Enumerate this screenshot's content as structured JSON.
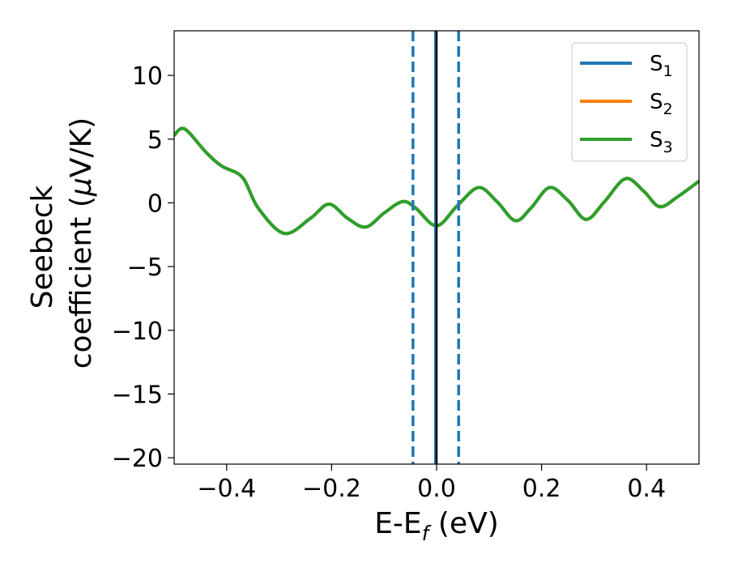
{
  "chart_data": {
    "type": "line",
    "xlabel": "E-E",
    "xlabel_sub": "f",
    "xlabel_unit": " (eV)",
    "ylabel_line1": "Seebeck",
    "ylabel_line2_pre": "coefficient  (",
    "ylabel_mu": "μ",
    "ylabel_line2_post": "V/K)",
    "xlim": [
      -0.5,
      0.5
    ],
    "ylim": [
      -20.5,
      13.5
    ],
    "xticks": [
      -0.4,
      -0.2,
      0.0,
      0.2,
      0.4
    ],
    "xtick_labels": [
      "−0.4",
      "−0.2",
      "0.0",
      "0.2",
      "0.4"
    ],
    "yticks": [
      10,
      5,
      0,
      -5,
      -10,
      -15,
      -20
    ],
    "ytick_labels": [
      "10",
      "5",
      "0",
      "−5",
      "−10",
      "−15",
      "−20"
    ],
    "grid": false,
    "legend_position": "top-right",
    "vlines": [
      {
        "x": -0.045,
        "style": "dashed",
        "color": "#1f77b4"
      },
      {
        "x": -0.002,
        "style": "solid",
        "color": "#1f77b4"
      },
      {
        "x": 0.0,
        "style": "solid",
        "color": "#000000"
      },
      {
        "x": 0.042,
        "style": "dashed",
        "color": "#1f77b4"
      }
    ],
    "series": [
      {
        "name": "S",
        "sub": "1",
        "color": "#1f77b4",
        "x": [
          -0.5,
          -0.48,
          -0.44,
          -0.41,
          -0.37,
          -0.34,
          -0.29,
          -0.24,
          -0.205,
          -0.17,
          -0.135,
          -0.1,
          -0.065,
          -0.04,
          0.0,
          0.04,
          0.08,
          0.115,
          0.15,
          0.18,
          0.215,
          0.25,
          0.285,
          0.32,
          0.36,
          0.395,
          0.425,
          0.46,
          0.5
        ],
        "y": [
          5.3,
          5.8,
          4.0,
          2.9,
          2.0,
          -0.4,
          -2.4,
          -1.2,
          -0.1,
          -1.2,
          -1.9,
          -0.8,
          0.1,
          -0.4,
          -1.8,
          -0.2,
          1.2,
          0.1,
          -1.4,
          -0.4,
          1.2,
          0.2,
          -1.3,
          0.1,
          1.9,
          0.9,
          -0.3,
          0.5,
          1.7
        ]
      },
      {
        "name": "S",
        "sub": "2",
        "color": "#ff7f0e",
        "x": [
          -0.5,
          -0.48,
          -0.44,
          -0.41,
          -0.37,
          -0.34,
          -0.29,
          -0.24,
          -0.205,
          -0.17,
          -0.135,
          -0.1,
          -0.065,
          -0.04,
          0.0,
          0.04,
          0.08,
          0.115,
          0.15,
          0.18,
          0.215,
          0.25,
          0.285,
          0.32,
          0.36,
          0.395,
          0.425,
          0.46,
          0.5
        ],
        "y": [
          5.3,
          5.8,
          4.0,
          2.9,
          2.0,
          -0.4,
          -2.4,
          -1.2,
          -0.1,
          -1.2,
          -1.9,
          -0.8,
          0.1,
          -0.4,
          -1.8,
          -0.2,
          1.2,
          0.1,
          -1.4,
          -0.4,
          1.2,
          0.2,
          -1.3,
          0.1,
          1.9,
          0.9,
          -0.3,
          0.5,
          1.7
        ]
      },
      {
        "name": "S",
        "sub": "3",
        "color": "#2ca02c",
        "x": [
          -0.5,
          -0.48,
          -0.44,
          -0.41,
          -0.37,
          -0.34,
          -0.29,
          -0.24,
          -0.205,
          -0.17,
          -0.135,
          -0.1,
          -0.065,
          -0.04,
          0.0,
          0.04,
          0.08,
          0.115,
          0.15,
          0.18,
          0.215,
          0.25,
          0.285,
          0.32,
          0.36,
          0.395,
          0.425,
          0.46,
          0.5
        ],
        "y": [
          5.3,
          5.8,
          4.0,
          2.9,
          2.0,
          -0.4,
          -2.4,
          -1.2,
          -0.1,
          -1.2,
          -1.9,
          -0.8,
          0.1,
          -0.4,
          -1.8,
          -0.2,
          1.2,
          0.1,
          -1.4,
          -0.4,
          1.2,
          0.2,
          -1.3,
          0.1,
          1.9,
          0.9,
          -0.3,
          0.5,
          1.7
        ]
      }
    ]
  }
}
